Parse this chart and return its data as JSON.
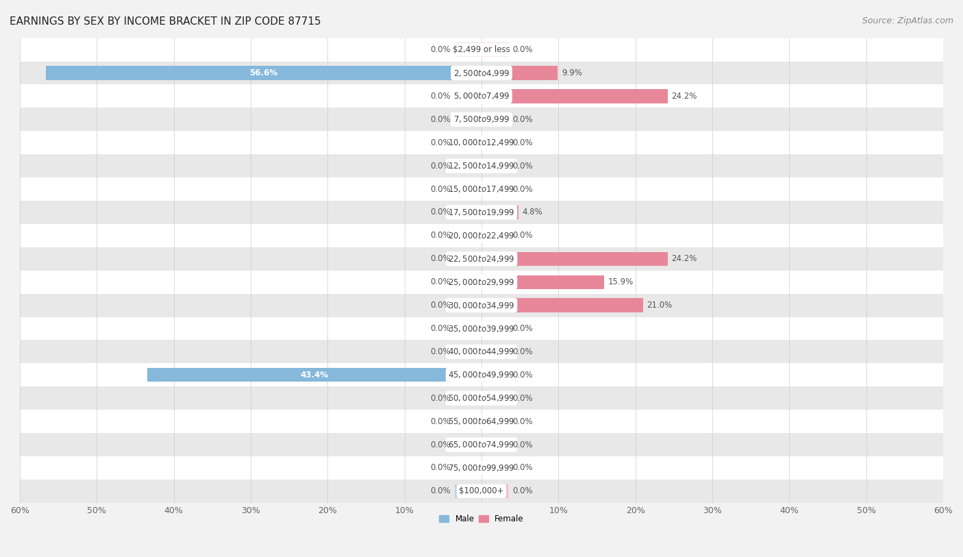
{
  "title": "EARNINGS BY SEX BY INCOME BRACKET IN ZIP CODE 87715",
  "source": "Source: ZipAtlas.com",
  "categories": [
    "$2,499 or less",
    "$2,500 to $4,999",
    "$5,000 to $7,499",
    "$7,500 to $9,999",
    "$10,000 to $12,499",
    "$12,500 to $14,999",
    "$15,000 to $17,499",
    "$17,500 to $19,999",
    "$20,000 to $22,499",
    "$22,500 to $24,999",
    "$25,000 to $29,999",
    "$30,000 to $34,999",
    "$35,000 to $39,999",
    "$40,000 to $44,999",
    "$45,000 to $49,999",
    "$50,000 to $54,999",
    "$55,000 to $64,999",
    "$65,000 to $74,999",
    "$75,000 to $99,999",
    "$100,000+"
  ],
  "male_values": [
    0.0,
    56.6,
    0.0,
    0.0,
    0.0,
    0.0,
    0.0,
    0.0,
    0.0,
    0.0,
    0.0,
    0.0,
    0.0,
    0.0,
    43.4,
    0.0,
    0.0,
    0.0,
    0.0,
    0.0
  ],
  "female_values": [
    0.0,
    9.9,
    24.2,
    0.0,
    0.0,
    0.0,
    0.0,
    4.8,
    0.0,
    24.2,
    15.9,
    21.0,
    0.0,
    0.0,
    0.0,
    0.0,
    0.0,
    0.0,
    0.0,
    0.0
  ],
  "male_color": "#85b8db",
  "female_color": "#e8879a",
  "male_color_light": "#b8d4e8",
  "female_color_light": "#f2b8c4",
  "background_color": "#f2f2f2",
  "row_color_light": "#ffffff",
  "row_color_dark": "#e8e8e8",
  "xlim": 60.0,
  "min_bar": 3.5,
  "legend_labels": [
    "Male",
    "Female"
  ],
  "title_fontsize": 11,
  "source_fontsize": 9,
  "cat_fontsize": 8.5,
  "val_fontsize": 8.5,
  "axis_label_fontsize": 9
}
